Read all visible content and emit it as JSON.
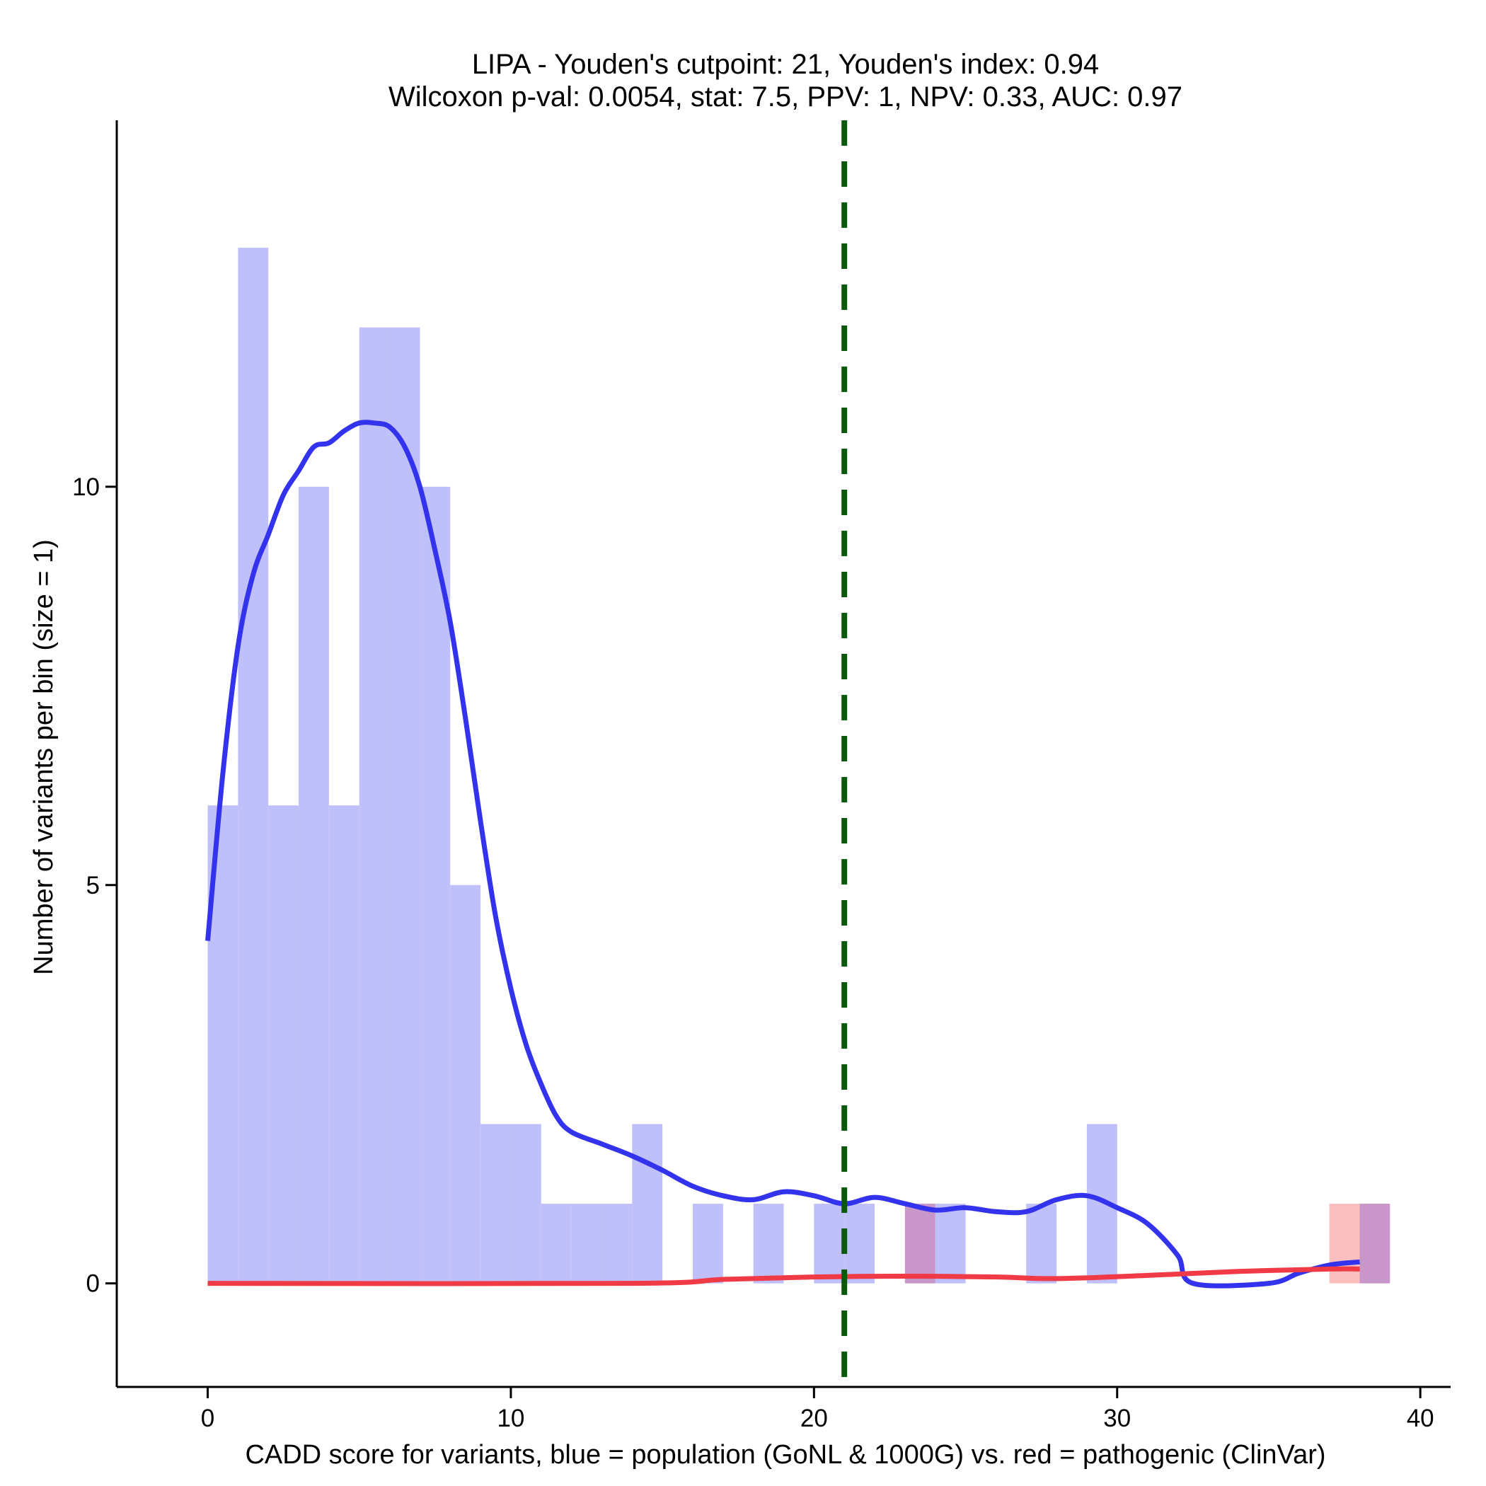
{
  "chart_data": {
    "type": "histogram",
    "title_line1": "LIPA - Youden's cutpoint: 21, Youden's index: 0.94",
    "title_line2": "Wilcoxon p-val: 0.0054, stat: 7.5, PPV: 1, NPV: 0.33, AUC: 0.97",
    "xlabel": "CADD score for variants, blue = population (GoNL & 1000G) vs. red = pathogenic (ClinVar)",
    "ylabel": "Number of variants per bin (size = 1)",
    "xlim": [
      -3,
      41
    ],
    "ylim": [
      -1.3,
      14.6
    ],
    "x_ticks": [
      0,
      10,
      20,
      30,
      40
    ],
    "y_ticks": [
      0,
      5,
      10
    ],
    "bin_size": 1,
    "cutpoint": 21,
    "colors": {
      "population_bar": "#bfbffa",
      "pathogenic_bar": "#fcbfbf",
      "overlap_bar": "#c896c8",
      "population_density": "#3333ee",
      "pathogenic_density": "#f03a45",
      "cutpoint_line": "#0b5a0b"
    },
    "series": [
      {
        "name": "population",
        "bins": [
          {
            "x0": 0,
            "count": 6
          },
          {
            "x0": 1,
            "count": 13
          },
          {
            "x0": 2,
            "count": 6
          },
          {
            "x0": 3,
            "count": 10
          },
          {
            "x0": 4,
            "count": 6
          },
          {
            "x0": 5,
            "count": 12
          },
          {
            "x0": 6,
            "count": 12
          },
          {
            "x0": 7,
            "count": 10
          },
          {
            "x0": 8,
            "count": 5
          },
          {
            "x0": 9,
            "count": 2
          },
          {
            "x0": 10,
            "count": 2
          },
          {
            "x0": 11,
            "count": 1
          },
          {
            "x0": 12,
            "count": 1
          },
          {
            "x0": 13,
            "count": 1
          },
          {
            "x0": 14,
            "count": 2
          },
          {
            "x0": 16,
            "count": 1
          },
          {
            "x0": 18,
            "count": 1
          },
          {
            "x0": 20,
            "count": 1
          },
          {
            "x0": 21,
            "count": 1
          },
          {
            "x0": 23,
            "count": 1
          },
          {
            "x0": 24,
            "count": 1
          },
          {
            "x0": 27,
            "count": 1
          },
          {
            "x0": 29,
            "count": 2
          },
          {
            "x0": 38,
            "count": 1
          }
        ],
        "density": [
          [
            0,
            4.3
          ],
          [
            0.5,
            6.4
          ],
          [
            1,
            8.0
          ],
          [
            1.5,
            8.9
          ],
          [
            2,
            9.4
          ],
          [
            2.5,
            9.9
          ],
          [
            3,
            10.2
          ],
          [
            3.5,
            10.5
          ],
          [
            4,
            10.55
          ],
          [
            4.5,
            10.7
          ],
          [
            5,
            10.8
          ],
          [
            5.5,
            10.8
          ],
          [
            6,
            10.75
          ],
          [
            6.5,
            10.5
          ],
          [
            7,
            10.0
          ],
          [
            7.5,
            9.2
          ],
          [
            8,
            8.3
          ],
          [
            8.5,
            7.1
          ],
          [
            9,
            5.8
          ],
          [
            9.5,
            4.6
          ],
          [
            10,
            3.7
          ],
          [
            10.5,
            3.0
          ],
          [
            11,
            2.5
          ],
          [
            11.5,
            2.1
          ],
          [
            12,
            1.9
          ],
          [
            13,
            1.75
          ],
          [
            14,
            1.6
          ],
          [
            15,
            1.42
          ],
          [
            16,
            1.22
          ],
          [
            17,
            1.1
          ],
          [
            18,
            1.05
          ],
          [
            19,
            1.15
          ],
          [
            20,
            1.1
          ],
          [
            21,
            1.0
          ],
          [
            22,
            1.08
          ],
          [
            23,
            1.0
          ],
          [
            24,
            0.92
          ],
          [
            25,
            0.95
          ],
          [
            26,
            0.9
          ],
          [
            27,
            0.9
          ],
          [
            28,
            1.05
          ],
          [
            29,
            1.1
          ],
          [
            30,
            0.95
          ],
          [
            31,
            0.75
          ],
          [
            32,
            0.35
          ],
          [
            32.5,
            0.0
          ],
          [
            35,
            0.0
          ],
          [
            36,
            0.13
          ],
          [
            37,
            0.23
          ],
          [
            38,
            0.27
          ]
        ]
      },
      {
        "name": "pathogenic",
        "bins": [
          {
            "x0": 23,
            "count": 1
          },
          {
            "x0": 37,
            "count": 1
          },
          {
            "x0": 38,
            "count": 1
          }
        ],
        "density": [
          [
            0,
            0.0
          ],
          [
            14,
            0.0
          ],
          [
            17,
            0.05
          ],
          [
            20,
            0.08
          ],
          [
            23,
            0.09
          ],
          [
            26,
            0.08
          ],
          [
            28,
            0.06
          ],
          [
            31,
            0.1
          ],
          [
            34,
            0.15
          ],
          [
            37,
            0.18
          ],
          [
            38,
            0.18
          ]
        ]
      }
    ]
  }
}
